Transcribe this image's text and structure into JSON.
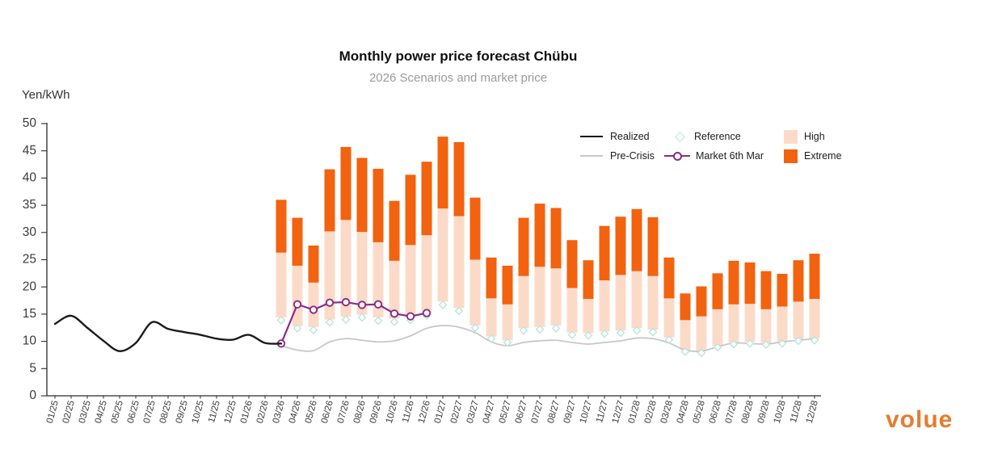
{
  "header": {
    "title": "Monthly power price forecast Chübu",
    "subtitle": "2026 Scenarios and market price",
    "y_unit": "Yen/kWh"
  },
  "logo": {
    "text": "volue",
    "color": "#e77b2f"
  },
  "legend": {
    "position": "top-right",
    "items": [
      {
        "label": "Realized",
        "swatch": "line",
        "color": "#1a1a1a"
      },
      {
        "label": "Reference",
        "swatch": "diamond",
        "color": "#b9e6df"
      },
      {
        "label": "High",
        "swatch": "rect",
        "color": "#fbdbc8"
      },
      {
        "label": "Pre-Crisis",
        "swatch": "line",
        "color": "#c8c8cc"
      },
      {
        "label": "Market 6th Mar",
        "swatch": "line-circle",
        "color": "#882d87"
      },
      {
        "label": "Extreme",
        "swatch": "rect",
        "color": "#f2620f"
      }
    ]
  },
  "chart_data": {
    "type": "bar",
    "subtype": "floating-range-bars-with-lines",
    "title": "Monthly power price forecast Chübu",
    "subtitle": "2026 Scenarios and market price",
    "ylabel": "Yen/kWh",
    "ylim": [
      0,
      50
    ],
    "ytick_step": 5,
    "grid": false,
    "categories": [
      "01/25",
      "02/25",
      "03/25",
      "04/25",
      "05/25",
      "06/25",
      "07/25",
      "08/25",
      "09/25",
      "10/25",
      "11/25",
      "12/25",
      "01/26",
      "02/26",
      "03/26",
      "04/26",
      "05/26",
      "06/26",
      "07/26",
      "08/26",
      "09/26",
      "10/26",
      "11/26",
      "12/26",
      "01/27",
      "02/27",
      "03/27",
      "04/27",
      "05/27",
      "06/27",
      "07/27",
      "08/27",
      "09/27",
      "10/27",
      "11/27",
      "12/27",
      "01/28",
      "02/28",
      "03/28",
      "04/28",
      "05/28",
      "06/28",
      "07/28",
      "08/28",
      "09/28",
      "10/28",
      "11/28",
      "12/28"
    ],
    "bars": {
      "start_category": "03/26",
      "high_color": "#fbdbc8",
      "extreme_color": "#f2620f",
      "note": "peach segment spans base..high, orange segment spans high..extreme (Yen/kWh)",
      "points": [
        {
          "month": "03/26",
          "base": 14.4,
          "high": 26.3,
          "extreme": 36.0
        },
        {
          "month": "04/26",
          "base": 12.8,
          "high": 23.9,
          "extreme": 32.7
        },
        {
          "month": "05/26",
          "base": 12.6,
          "high": 20.8,
          "extreme": 27.6
        },
        {
          "month": "06/26",
          "base": 14.0,
          "high": 30.2,
          "extreme": 41.6
        },
        {
          "month": "07/26",
          "base": 14.5,
          "high": 32.3,
          "extreme": 45.7
        },
        {
          "month": "08/26",
          "base": 14.9,
          "high": 30.1,
          "extreme": 43.7
        },
        {
          "month": "09/26",
          "base": 14.4,
          "high": 28.2,
          "extreme": 41.7
        },
        {
          "month": "10/26",
          "base": 14.2,
          "high": 24.8,
          "extreme": 35.8
        },
        {
          "month": "11/26",
          "base": 14.4,
          "high": 27.7,
          "extreme": 40.6
        },
        {
          "month": "12/26",
          "base": 15.2,
          "high": 29.5,
          "extreme": 43.0
        },
        {
          "month": "01/27",
          "base": 17.3,
          "high": 34.4,
          "extreme": 47.6
        },
        {
          "month": "02/27",
          "base": 16.1,
          "high": 33.0,
          "extreme": 46.6
        },
        {
          "month": "03/27",
          "base": 12.9,
          "high": 25.0,
          "extreme": 36.4
        },
        {
          "month": "04/27",
          "base": 10.9,
          "high": 17.9,
          "extreme": 25.4
        },
        {
          "month": "05/27",
          "base": 10.2,
          "high": 16.8,
          "extreme": 23.9
        },
        {
          "month": "06/27",
          "base": 12.4,
          "high": 22.0,
          "extreme": 32.7
        },
        {
          "month": "07/27",
          "base": 12.6,
          "high": 23.7,
          "extreme": 35.3
        },
        {
          "month": "08/27",
          "base": 12.9,
          "high": 23.4,
          "extreme": 34.5
        },
        {
          "month": "09/27",
          "base": 11.6,
          "high": 19.8,
          "extreme": 28.6
        },
        {
          "month": "10/27",
          "base": 11.5,
          "high": 17.8,
          "extreme": 24.9
        },
        {
          "month": "11/27",
          "base": 11.8,
          "high": 21.2,
          "extreme": 31.2
        },
        {
          "month": "12/27",
          "base": 12.0,
          "high": 22.2,
          "extreme": 32.9
        },
        {
          "month": "01/28",
          "base": 12.4,
          "high": 22.9,
          "extreme": 34.3
        },
        {
          "month": "02/28",
          "base": 12.1,
          "high": 22.0,
          "extreme": 32.8
        },
        {
          "month": "03/28",
          "base": 10.7,
          "high": 17.9,
          "extreme": 25.4
        },
        {
          "month": "04/28",
          "base": 8.4,
          "high": 13.9,
          "extreme": 18.8
        },
        {
          "month": "05/28",
          "base": 8.2,
          "high": 14.6,
          "extreme": 20.1
        },
        {
          "month": "06/28",
          "base": 9.2,
          "high": 15.9,
          "extreme": 22.5
        },
        {
          "month": "07/28",
          "base": 9.8,
          "high": 16.8,
          "extreme": 24.8
        },
        {
          "month": "08/28",
          "base": 9.9,
          "high": 16.9,
          "extreme": 24.5
        },
        {
          "month": "09/28",
          "base": 9.7,
          "high": 15.9,
          "extreme": 22.9
        },
        {
          "month": "10/28",
          "base": 9.9,
          "high": 16.4,
          "extreme": 22.4
        },
        {
          "month": "11/28",
          "base": 10.4,
          "high": 17.3,
          "extreme": 24.9
        },
        {
          "month": "12/28",
          "base": 10.5,
          "high": 17.8,
          "extreme": 26.1
        }
      ]
    },
    "series": [
      {
        "name": "Realized",
        "type": "line",
        "smooth": true,
        "color": "#1a1a1a",
        "width": 2.4,
        "start": "01/25",
        "values": [
          13.2,
          14.7,
          12.5,
          10.1,
          8.2,
          9.7,
          13.5,
          12.3,
          11.7,
          11.2,
          10.5,
          10.3,
          11.2,
          9.7,
          9.6
        ]
      },
      {
        "name": "Pre-Crisis",
        "type": "line",
        "smooth": true,
        "color": "#c8c8cc",
        "width": 1.8,
        "start": "03/26",
        "values": [
          9.2,
          8.4,
          8.3,
          9.9,
          10.5,
          10.2,
          9.9,
          10.1,
          11.0,
          12.4,
          12.9,
          12.6,
          11.6,
          9.9,
          9.2,
          9.8,
          10.1,
          10.2,
          9.8,
          9.5,
          9.8,
          10.1,
          10.6,
          10.5,
          9.7,
          8.4,
          8.2,
          9.0,
          9.7,
          9.6,
          9.5,
          9.9,
          10.2,
          10.5
        ]
      },
      {
        "name": "Market 6th Mar",
        "type": "line-circle",
        "smooth": false,
        "color": "#882d87",
        "width": 2.2,
        "start": "03/26",
        "values": [
          9.6,
          16.8,
          15.8,
          17.1,
          17.2,
          16.7,
          16.8,
          15.1,
          14.6,
          15.2
        ]
      },
      {
        "name": "Reference",
        "type": "diamond",
        "color": "#b9e6df",
        "start": "03/26",
        "values": [
          13.9,
          12.4,
          12.1,
          13.5,
          14.0,
          14.4,
          13.8,
          13.6,
          13.9,
          14.7,
          16.7,
          15.6,
          12.5,
          10.5,
          9.8,
          12.0,
          12.2,
          12.4,
          11.2,
          11.1,
          11.4,
          11.6,
          12.0,
          11.7,
          10.3,
          8.1,
          7.9,
          8.9,
          9.5,
          9.6,
          9.4,
          9.6,
          10.1,
          10.2
        ]
      }
    ]
  }
}
